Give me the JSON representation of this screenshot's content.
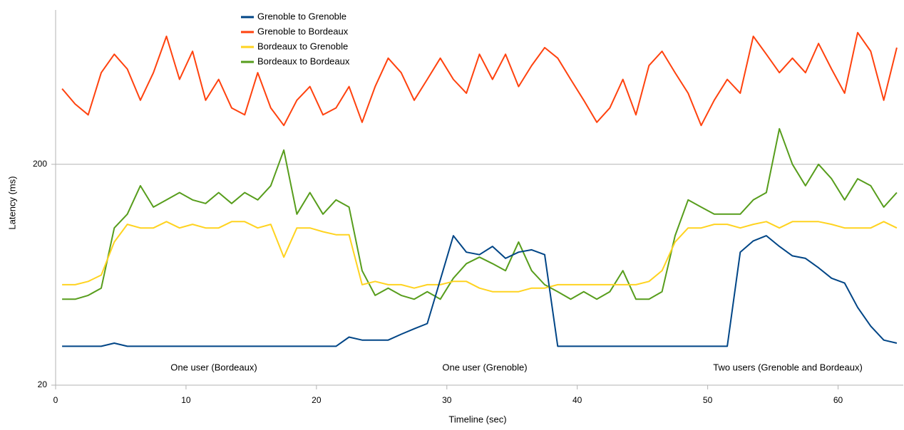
{
  "chart_data": {
    "type": "line",
    "x_label": "Timeline (sec)",
    "y_label": "Latency (ms)",
    "x": [
      0.5,
      1.5,
      2.5,
      3.5,
      4.5,
      5.5,
      6.5,
      7.5,
      8.5,
      9.5,
      10.5,
      11.5,
      12.5,
      13.5,
      14.5,
      15.5,
      16.5,
      17.5,
      18.5,
      19.5,
      20.5,
      21.5,
      22.5,
      23.5,
      24.5,
      25.5,
      26.5,
      27.5,
      28.5,
      29.5,
      30.5,
      31.5,
      32.5,
      33.5,
      34.5,
      35.5,
      36.5,
      37.5,
      38.5,
      39.5,
      40.5,
      41.5,
      42.5,
      43.5,
      44.5,
      45.5,
      46.5,
      47.5,
      48.5,
      49.5,
      50.5,
      51.5,
      52.5,
      53.5,
      54.5,
      55.5,
      56.5,
      57.5,
      58.5,
      59.5,
      60.5,
      61.5,
      62.5,
      63.5,
      64.5
    ],
    "series": [
      {
        "name": "Grenoble to Grenoble",
        "color": "#004586",
        "values": [
          30,
          30,
          30,
          30,
          31,
          30,
          30,
          30,
          30,
          30,
          30,
          30,
          30,
          30,
          30,
          30,
          30,
          30,
          30,
          30,
          30,
          30,
          33,
          32,
          32,
          32,
          34,
          36,
          38,
          60,
          95,
          80,
          78,
          85,
          75,
          80,
          82,
          78,
          30,
          30,
          30,
          30,
          30,
          30,
          30,
          30,
          30,
          30,
          30,
          30,
          30,
          30,
          80,
          90,
          95,
          85,
          77,
          75,
          68,
          61,
          58,
          45,
          37,
          32,
          31
        ]
      },
      {
        "name": "Grenoble to Bordeaux",
        "color": "#ff420e",
        "values": [
          440,
          375,
          335,
          520,
          630,
          540,
          390,
          520,
          760,
          485,
          650,
          390,
          485,
          360,
          335,
          520,
          360,
          300,
          390,
          450,
          335,
          360,
          450,
          310,
          450,
          605,
          520,
          390,
          485,
          605,
          485,
          420,
          630,
          485,
          630,
          450,
          560,
          675,
          605,
          485,
          390,
          310,
          360,
          485,
          335,
          560,
          650,
          520,
          420,
          300,
          390,
          485,
          420,
          760,
          630,
          520,
          605,
          520,
          705,
          540,
          420,
          790,
          650,
          390,
          675
        ]
      },
      {
        "name": "Bordeaux to Grenoble",
        "color": "#ffd320",
        "values": [
          57,
          57,
          59,
          63,
          89,
          107,
          103,
          103,
          110,
          103,
          107,
          103,
          103,
          110,
          110,
          103,
          107,
          76,
          103,
          103,
          99,
          96,
          96,
          57,
          59,
          57,
          57,
          55,
          57,
          57,
          59,
          59,
          55,
          53,
          53,
          53,
          55,
          55,
          57,
          57,
          57,
          57,
          57,
          57,
          57,
          59,
          66,
          89,
          103,
          103,
          107,
          107,
          103,
          107,
          110,
          103,
          110,
          110,
          110,
          107,
          103,
          103,
          103,
          110,
          103
        ]
      },
      {
        "name": "Bordeaux to Bordeaux",
        "color": "#579d1c",
        "values": [
          49,
          49,
          51,
          55,
          103,
          119,
          160,
          128,
          138,
          149,
          138,
          133,
          149,
          133,
          149,
          138,
          160,
          232,
          119,
          149,
          119,
          138,
          128,
          66,
          51,
          55,
          51,
          49,
          53,
          49,
          61,
          71,
          76,
          71,
          66,
          89,
          66,
          57,
          53,
          49,
          53,
          49,
          53,
          66,
          49,
          49,
          53,
          95,
          138,
          128,
          119,
          119,
          119,
          138,
          149,
          290,
          200,
          160,
          200,
          172,
          138,
          172,
          160,
          128,
          149
        ]
      }
    ],
    "xlim": [
      0,
      65
    ],
    "xticks": [
      0,
      10,
      20,
      30,
      40,
      50,
      60
    ],
    "ylim": [
      20,
      1000
    ],
    "yticks": [
      20,
      200
    ],
    "log_scale": true,
    "grid": true,
    "annotations": [
      "One user (Bordeaux)",
      "One user (Grenoble)",
      "Two users (Grenoble and Bordeaux)"
    ]
  }
}
